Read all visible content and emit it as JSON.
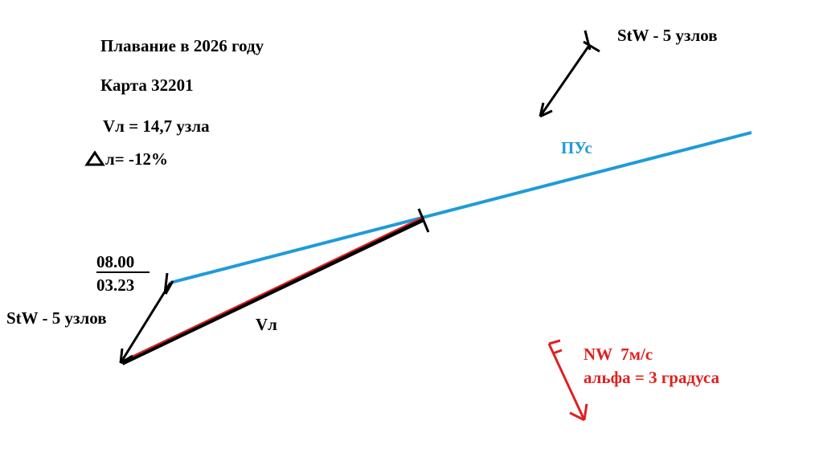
{
  "header": {
    "title": "Плавание в 2026 году",
    "chart": "Карта 32201",
    "speed": "Vл = 14,7 узла",
    "drift": "л= -12%"
  },
  "labels": {
    "current_top": "StW - 5 узлов",
    "course": "ПУс",
    "time": "08.00",
    "log": "03.23",
    "current_left": "StW - 5 узлов",
    "speed_vector": "Vл",
    "wind": "NW  7м/с",
    "leeway": "альфа = 3 градуса"
  }
}
